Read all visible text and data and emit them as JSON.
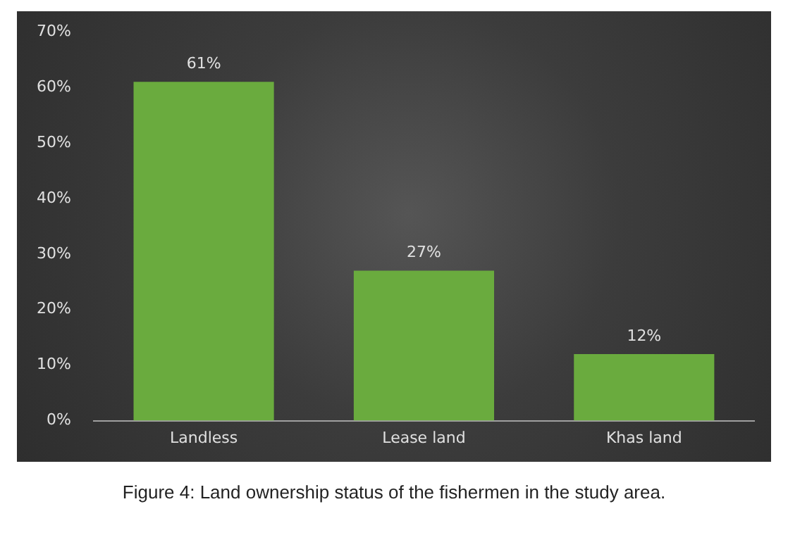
{
  "chart_data": {
    "type": "bar",
    "categories": [
      "Landless",
      "Lease land",
      "Khas land"
    ],
    "values": [
      61,
      27,
      12
    ],
    "value_labels": [
      "61%",
      "27%",
      "12%"
    ],
    "color": "#6aab3e",
    "ylim": [
      0,
      70
    ],
    "yticks": [
      {
        "value": 0,
        "label": "0%"
      },
      {
        "value": 10,
        "label": "10%"
      },
      {
        "value": 20,
        "label": "20%"
      },
      {
        "value": 30,
        "label": "30%"
      },
      {
        "value": 40,
        "label": "40%"
      },
      {
        "value": 50,
        "label": "50%"
      },
      {
        "value": 60,
        "label": "60%"
      },
      {
        "value": 70,
        "label": "70%"
      }
    ],
    "grid": false,
    "legend": false,
    "annotations": [
      "Figure 4: Land ownership status of the fishermen in the study area."
    ]
  }
}
